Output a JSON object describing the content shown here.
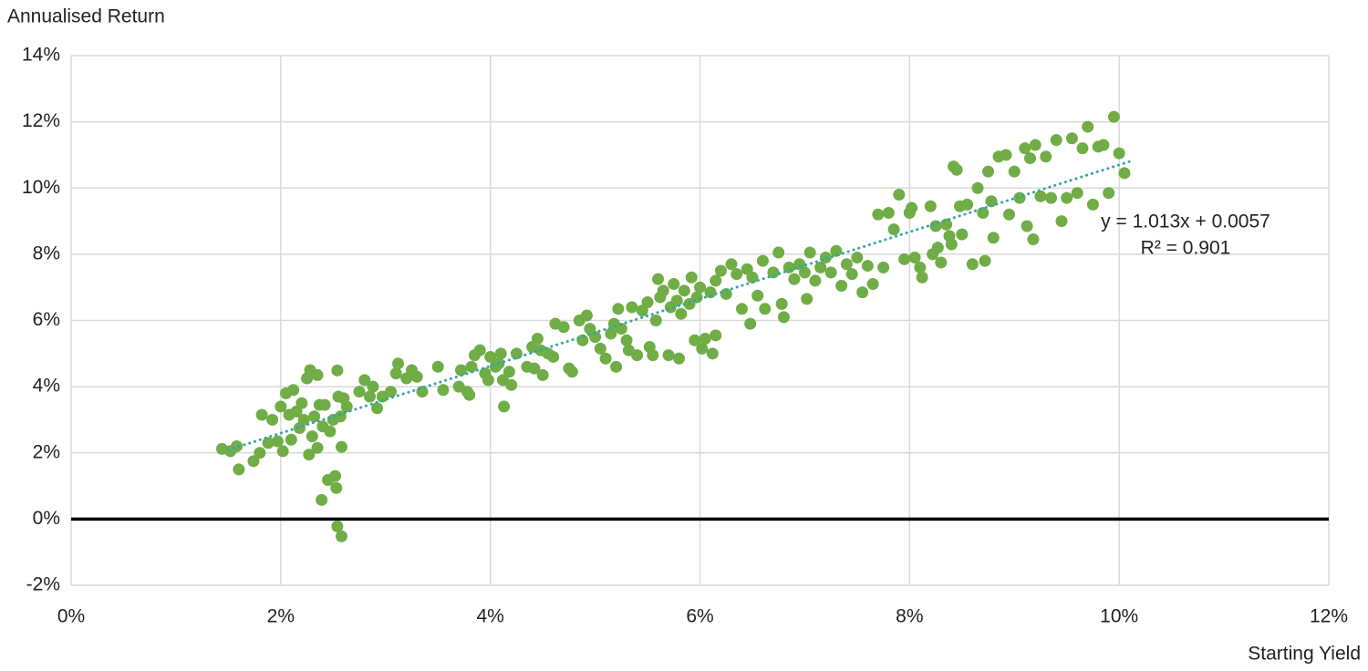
{
  "chart_data": {
    "type": "scatter",
    "title": "Annualised Return",
    "x_label": "Starting Yield",
    "color": "#70AD47",
    "grid": true,
    "grid_color": "#D9D9D9",
    "zero_line_color": "#000000",
    "xlim": [
      0,
      12
    ],
    "ylim": [
      -2,
      14
    ],
    "xticks": [
      {
        "value": 0,
        "label": "0%"
      },
      {
        "value": 2,
        "label": "2%"
      },
      {
        "value": 4,
        "label": "4%"
      },
      {
        "value": 6,
        "label": "6%"
      },
      {
        "value": 8,
        "label": "8%"
      },
      {
        "value": 10,
        "label": "10%"
      },
      {
        "value": 12,
        "label": "12%"
      }
    ],
    "yticks": [
      {
        "value": -2,
        "label": "-2%"
      },
      {
        "value": 0,
        "label": "0%"
      },
      {
        "value": 2,
        "label": "2%"
      },
      {
        "value": 4,
        "label": "4%"
      },
      {
        "value": 6,
        "label": "6%"
      },
      {
        "value": 8,
        "label": "8%"
      },
      {
        "value": 10,
        "label": "10%"
      },
      {
        "value": 12,
        "label": "12%"
      },
      {
        "value": 14,
        "label": "14%"
      }
    ],
    "trendline": {
      "slope": 1.013,
      "intercept": 0.57,
      "x": [
        1.5,
        10.1
      ],
      "color": "#2EA6A6",
      "equation": "y = 1.013x + 0.0057",
      "r_squared": "R² = 0.901"
    },
    "x": [
      1.44,
      1.52,
      1.58,
      1.6,
      1.74,
      1.8,
      1.82,
      1.88,
      1.92,
      1.97,
      2.0,
      2.02,
      2.05,
      2.08,
      2.1,
      2.12,
      2.15,
      2.18,
      2.2,
      2.22,
      2.25,
      2.27,
      2.28,
      2.3,
      2.32,
      2.35,
      2.35,
      2.37,
      2.39,
      2.4,
      2.42,
      2.45,
      2.47,
      2.5,
      2.52,
      2.53,
      2.54,
      2.54,
      2.55,
      2.57,
      2.58,
      2.58,
      2.6,
      2.63,
      2.75,
      2.8,
      2.85,
      2.88,
      2.92,
      2.97,
      3.05,
      3.1,
      3.12,
      3.2,
      3.25,
      3.3,
      3.35,
      3.5,
      3.55,
      3.7,
      3.72,
      3.78,
      3.8,
      3.82,
      3.85,
      3.9,
      3.95,
      3.98,
      4.0,
      4.05,
      4.08,
      4.1,
      4.12,
      4.13,
      4.18,
      4.2,
      4.25,
      4.35,
      4.4,
      4.42,
      4.45,
      4.48,
      4.5,
      4.55,
      4.6,
      4.62,
      4.7,
      4.75,
      4.78,
      4.85,
      4.88,
      4.92,
      4.95,
      5.0,
      5.05,
      5.1,
      5.15,
      5.18,
      5.2,
      5.22,
      5.25,
      5.3,
      5.32,
      5.35,
      5.4,
      5.45,
      5.5,
      5.52,
      5.55,
      5.58,
      5.6,
      5.62,
      5.65,
      5.7,
      5.72,
      5.75,
      5.78,
      5.8,
      5.82,
      5.85,
      5.9,
      5.92,
      5.95,
      5.97,
      6.0,
      6.02,
      6.05,
      6.1,
      6.12,
      6.15,
      6.15,
      6.2,
      6.25,
      6.3,
      6.35,
      6.4,
      6.45,
      6.48,
      6.5,
      6.55,
      6.6,
      6.62,
      6.7,
      6.75,
      6.78,
      6.8,
      6.85,
      6.9,
      6.95,
      7.0,
      7.02,
      7.05,
      7.1,
      7.15,
      7.2,
      7.25,
      7.3,
      7.35,
      7.4,
      7.45,
      7.5,
      7.55,
      7.6,
      7.65,
      7.7,
      7.75,
      7.8,
      7.85,
      7.9,
      7.95,
      8.0,
      8.02,
      8.05,
      8.1,
      8.12,
      8.2,
      8.22,
      8.25,
      8.27,
      8.3,
      8.35,
      8.38,
      8.4,
      8.42,
      8.45,
      8.48,
      8.5,
      8.55,
      8.6,
      8.65,
      8.7,
      8.72,
      8.75,
      8.78,
      8.8,
      8.85,
      8.92,
      8.95,
      9.0,
      9.05,
      9.1,
      9.12,
      9.15,
      9.18,
      9.2,
      9.25,
      9.3,
      9.35,
      9.4,
      9.45,
      9.5,
      9.55,
      9.6,
      9.65,
      9.7,
      9.75,
      9.8,
      9.85,
      9.9,
      9.95,
      10.0,
      10.05
    ],
    "values": [
      2.12,
      2.05,
      2.2,
      1.5,
      1.75,
      2.0,
      3.15,
      2.3,
      3.0,
      2.35,
      3.4,
      2.05,
      3.8,
      3.15,
      2.4,
      3.9,
      3.25,
      2.75,
      3.5,
      3.0,
      4.25,
      1.95,
      4.5,
      2.5,
      3.1,
      4.35,
      2.15,
      3.45,
      0.58,
      2.8,
      3.45,
      1.18,
      2.65,
      3.0,
      1.3,
      0.94,
      -0.22,
      4.49,
      3.7,
      3.1,
      2.18,
      -0.52,
      3.65,
      3.4,
      3.85,
      4.2,
      3.7,
      4.0,
      3.35,
      3.7,
      3.85,
      4.4,
      4.7,
      4.25,
      4.5,
      4.3,
      3.85,
      4.6,
      3.9,
      4.0,
      4.5,
      3.85,
      3.75,
      4.6,
      4.95,
      5.1,
      4.4,
      4.2,
      4.9,
      4.6,
      4.7,
      5.0,
      4.2,
      3.4,
      4.45,
      4.05,
      5.0,
      4.6,
      5.2,
      4.55,
      5.45,
      5.1,
      4.35,
      5.0,
      4.9,
      5.9,
      5.8,
      4.55,
      4.45,
      6.0,
      5.4,
      6.15,
      5.75,
      5.5,
      5.15,
      4.85,
      5.6,
      5.9,
      4.6,
      6.35,
      5.75,
      5.4,
      5.1,
      6.4,
      4.95,
      6.3,
      6.55,
      5.2,
      4.95,
      6.0,
      7.25,
      6.7,
      6.9,
      4.95,
      6.4,
      7.1,
      6.6,
      4.85,
      6.2,
      6.9,
      6.5,
      7.3,
      5.4,
      6.7,
      7.0,
      5.15,
      5.45,
      6.85,
      5.0,
      5.55,
      7.2,
      7.5,
      6.8,
      7.7,
      7.4,
      6.35,
      7.55,
      5.9,
      7.3,
      6.75,
      7.8,
      6.35,
      7.45,
      8.05,
      6.5,
      6.1,
      7.6,
      7.25,
      7.7,
      7.45,
      6.65,
      8.05,
      7.2,
      7.6,
      7.9,
      7.45,
      8.1,
      7.05,
      7.7,
      7.4,
      7.9,
      6.85,
      7.65,
      7.1,
      9.2,
      7.6,
      9.25,
      8.75,
      9.8,
      7.85,
      9.25,
      9.4,
      7.9,
      7.6,
      7.3,
      9.45,
      8.0,
      8.85,
      8.2,
      7.75,
      8.9,
      8.55,
      8.3,
      10.65,
      10.55,
      9.45,
      8.6,
      9.5,
      7.7,
      10.0,
      9.25,
      7.8,
      10.5,
      9.6,
      8.5,
      10.95,
      11.0,
      9.2,
      10.5,
      9.7,
      11.2,
      8.85,
      10.9,
      8.45,
      11.3,
      9.75,
      10.95,
      9.7,
      11.45,
      9.0,
      9.7,
      11.5,
      9.85,
      11.2,
      11.85,
      9.5,
      11.25,
      11.3,
      9.85,
      12.15,
      11.05,
      10.45
    ]
  }
}
